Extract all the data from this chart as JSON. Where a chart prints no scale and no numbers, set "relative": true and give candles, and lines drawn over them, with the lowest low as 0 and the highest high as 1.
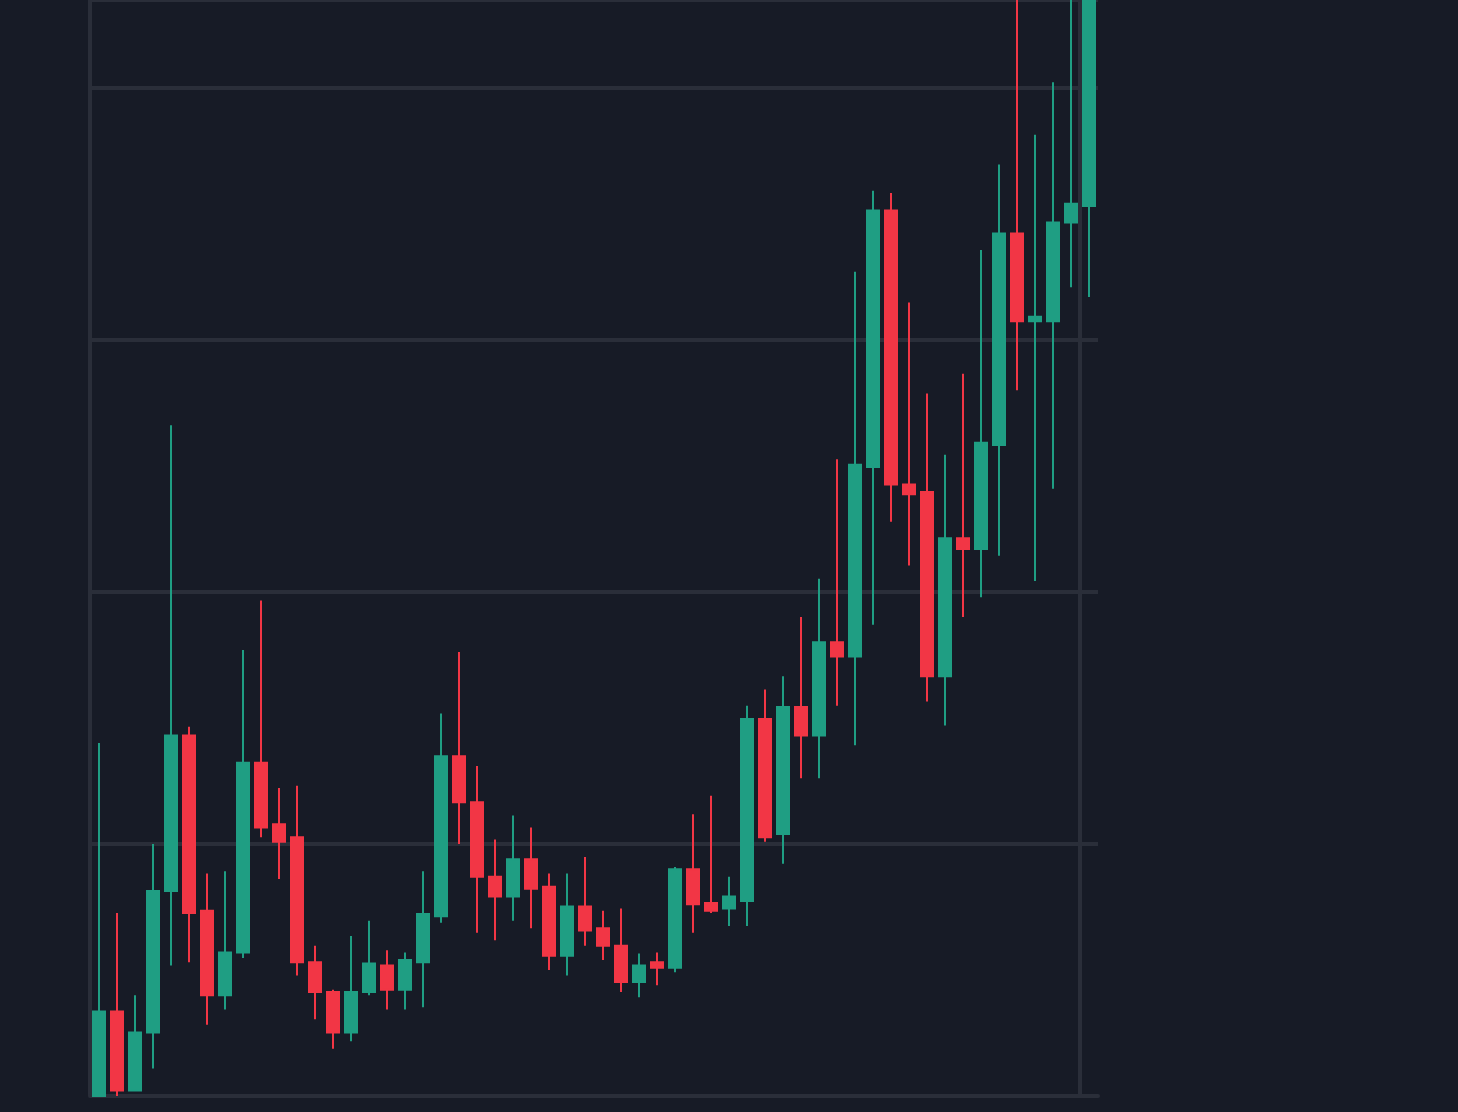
{
  "chart_data": {
    "type": "candlestick",
    "relative": true,
    "grid": true,
    "colors": [
      "#1f9e83",
      "#f23645",
      "#1f9e83",
      "#1f9e83",
      "#1f9e83",
      "#f23645",
      "#f23645",
      "#1f9e83",
      "#1f9e83",
      "#f23645",
      "#f23645",
      "#f23645",
      "#f23645",
      "#f23645",
      "#1f9e83",
      "#1f9e83",
      "#f23645",
      "#1f9e83",
      "#1f9e83",
      "#1f9e83",
      "#f23645",
      "#f23645",
      "#f23645",
      "#1f9e83",
      "#f23645",
      "#f23645",
      "#1f9e83",
      "#f23645",
      "#f23645",
      "#f23645",
      "#1f9e83",
      "#f23645",
      "#1f9e83",
      "#f23645",
      "#f23645",
      "#1f9e83",
      "#1f9e83",
      "#f23645",
      "#1f9e83",
      "#f23645",
      "#1f9e83",
      "#f23645",
      "#1f9e83",
      "#1f9e83",
      "#f23645",
      "#f23645",
      "#f23645",
      "#1f9e83",
      "#f23645",
      "#1f9e83",
      "#1f9e83",
      "#f23645",
      "#1f9e83",
      "#1f9e83",
      "#1f9e83",
      "#1f9e83"
    ],
    "categories": [
      null,
      null,
      null,
      null,
      null,
      null,
      null,
      null,
      null,
      null,
      null,
      null,
      null,
      null,
      null,
      null,
      null,
      null,
      null,
      null,
      null,
      null,
      null,
      null,
      null,
      null,
      null,
      null,
      null,
      null,
      null,
      null,
      null,
      null,
      null,
      null,
      null,
      null,
      null,
      null,
      null,
      null,
      null,
      null,
      null,
      null,
      null,
      null,
      null,
      null,
      null,
      null,
      null,
      null,
      null,
      null
    ],
    "ohlc": [
      [
        0,
        0.322,
        0,
        0.077
      ],
      [
        0.077,
        0.167,
        0,
        0.005
      ],
      [
        0.005,
        0.092,
        0.005,
        0.058
      ],
      [
        0.058,
        0.23,
        0.025,
        0.187
      ],
      [
        0.187,
        0.612,
        0.119,
        0.329
      ],
      [
        0.329,
        0.337,
        0.122,
        0.167
      ],
      [
        0.169,
        0.203,
        0.065,
        0.092
      ],
      [
        0.092,
        0.205,
        0.079,
        0.131
      ],
      [
        0.131,
        0.407,
        0.126,
        0.304
      ],
      [
        0.304,
        0.452,
        0.236,
        0.245
      ],
      [
        0.248,
        0.281,
        0.198,
        0.232
      ],
      [
        0.236,
        0.283,
        0.11,
        0.122
      ],
      [
        0.122,
        0.137,
        0.07,
        0.095
      ],
      [
        0.095,
        0.097,
        0.043,
        0.058
      ],
      [
        0.058,
        0.146,
        0.05,
        0.095
      ],
      [
        0.095,
        0.16,
        0.092,
        0.121
      ],
      [
        0.119,
        0.133,
        0.079,
        0.097
      ],
      [
        0.097,
        0.131,
        0.079,
        0.124
      ],
      [
        0.122,
        0.205,
        0.081,
        0.166
      ],
      [
        0.164,
        0.349,
        0.158,
        0.31
      ],
      [
        0.31,
        0.405,
        0.23,
        0.268
      ],
      [
        0.268,
        0.301,
        0.149,
        0.2
      ],
      [
        0.2,
        0.234,
        0.142,
        0.182
      ],
      [
        0.182,
        0.256,
        0.16,
        0.216
      ],
      [
        0.216,
        0.245,
        0.153,
        0.189
      ],
      [
        0.191,
        0.203,
        0.115,
        0.128
      ],
      [
        0.128,
        0.203,
        0.11,
        0.173
      ],
      [
        0.173,
        0.218,
        0.137,
        0.151
      ],
      [
        0.153,
        0.169,
        0.124,
        0.137
      ],
      [
        0.137,
        0.171,
        0.095,
        0.104
      ],
      [
        0.104,
        0.13,
        0.09,
        0.119
      ],
      [
        0.122,
        0.131,
        0.101,
        0.117
      ],
      [
        0.117,
        0.209,
        0.113,
        0.207
      ],
      [
        0.207,
        0.257,
        0.149,
        0.175
      ],
      [
        0.176,
        0.274,
        0.167,
        0.169
      ],
      [
        0.171,
        0.2,
        0.155,
        0.182
      ],
      [
        0.178,
        0.356,
        0.155,
        0.344
      ],
      [
        0.344,
        0.371,
        0.232,
        0.236
      ],
      [
        0.239,
        0.383,
        0.212,
        0.355
      ],
      [
        0.355,
        0.437,
        0.29,
        0.329
      ],
      [
        0.329,
        0.472,
        0.29,
        0.414
      ],
      [
        0.414,
        0.581,
        0.356,
        0.401
      ],
      [
        0.401,
        0.752,
        0.32,
        0.576
      ],
      [
        0.574,
        0.826,
        0.43,
        0.808
      ],
      [
        0.808,
        0.824,
        0.524,
        0.558
      ],
      [
        0.558,
        0.724,
        0.484,
        0.549
      ],
      [
        0.551,
        0.641,
        0.36,
        0.383
      ],
      [
        0.383,
        0.585,
        0.338,
        0.509
      ],
      [
        0.509,
        0.659,
        0.437,
        0.499
      ],
      [
        0.499,
        0.772,
        0.455,
        0.596
      ],
      [
        0.594,
        0.85,
        0.493,
        0.787
      ],
      [
        0.787,
        1,
        0.644,
        0.707
      ],
      [
        0.707,
        0.877,
        0.47,
        0.711
      ],
      [
        0.707,
        0.925,
        0.554,
        0.797
      ],
      [
        0.797,
        1,
        0.738,
        0.814
      ],
      [
        0.812,
        1,
        0.729,
        1
      ]
    ]
  }
}
